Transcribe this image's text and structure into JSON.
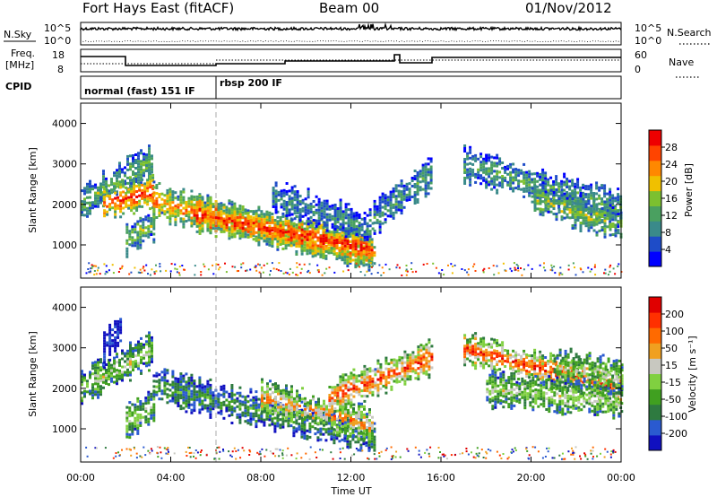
{
  "header": {
    "station": "Fort Hays East (fitACF)",
    "beam": "Beam 00",
    "date": "01/Nov/2012"
  },
  "top_panel": {
    "nsky_label": "N.Sky",
    "nsearch_label": "N.Search",
    "left_ticks": [
      "10^5",
      "10^0"
    ],
    "right_ticks": [
      "10^5",
      "10^0"
    ]
  },
  "freq_panel": {
    "freq_label_line1": "Freq.",
    "freq_label_line2": "[MHz]",
    "nave_label": "Nave",
    "left_ticks": [
      "18",
      "8"
    ],
    "right_ticks": [
      "60",
      "0"
    ]
  },
  "cpid_panel": {
    "label": "CPID",
    "modes": [
      {
        "name": "normal (fast) 151 IF",
        "start_hour": 0
      },
      {
        "name": "rbsp 200 IF",
        "start_hour": 6
      }
    ]
  },
  "x_axis": {
    "title": "Time UT",
    "ticks": [
      "00:00",
      "04:00",
      "08:00",
      "12:00",
      "16:00",
      "20:00",
      "00:00"
    ]
  },
  "colors": {
    "power_scale": [
      "#0000ff",
      "#1e4cc8",
      "#3a8a8a",
      "#4aa060",
      "#7cc030",
      "#f0c000",
      "#ff8800",
      "#ff4400",
      "#ee0000"
    ],
    "velocity_scale": [
      "#1010c0",
      "#2a5ad0",
      "#2e7a40",
      "#40a020",
      "#80d040",
      "#c8c8c0",
      "#f0a020",
      "#ff6a00",
      "#ff3000",
      "#e00000"
    ]
  },
  "chart_data": [
    {
      "type": "heatmap",
      "name": "power",
      "ylabel": "Slant Range [km]",
      "colorbar_label": "Power [dB]",
      "colorbar_ticks": [
        "28",
        "24",
        "20",
        "16",
        "12",
        "8",
        "4"
      ],
      "xlim_hours": [
        0,
        24
      ],
      "ylim_km": [
        180,
        4500
      ],
      "y_ticks": [
        "4000",
        "3000",
        "2000",
        "1000"
      ],
      "y_tick_values": [
        4000,
        3000,
        2000,
        1000
      ],
      "echo_bands": [
        {
          "t0": 0.0,
          "t1": 3.2,
          "r0": 2050,
          "r1": 3150,
          "level": 0.45
        },
        {
          "t0": 1.0,
          "t1": 3.2,
          "r0": 2050,
          "r1": 2350,
          "level": 0.9
        },
        {
          "t0": 2.0,
          "t1": 3.2,
          "r0": 1150,
          "r1": 1550,
          "level": 0.5
        },
        {
          "t0": 3.2,
          "t1": 13.0,
          "r0": 2100,
          "r1": 800,
          "level": 0.75
        },
        {
          "t0": 5.0,
          "t1": 13.0,
          "r0": 1800,
          "r1": 900,
          "level": 0.95
        },
        {
          "t0": 8.5,
          "t1": 13.0,
          "r0": 2200,
          "r1": 1400,
          "level": 0.3
        },
        {
          "t0": 13.0,
          "t1": 15.6,
          "r0": 1700,
          "r1": 2800,
          "level": 0.35
        },
        {
          "t0": 17.0,
          "t1": 24.0,
          "r0": 3000,
          "r1": 1900,
          "level": 0.4
        },
        {
          "t0": 20.0,
          "t1": 24.0,
          "r0": 2200,
          "r1": 1500,
          "level": 0.5
        }
      ]
    },
    {
      "type": "heatmap",
      "name": "velocity",
      "ylabel": "Slant Range [km]",
      "colorbar_label": "Velocity [m s⁻¹]",
      "colorbar_ticks": [
        "200",
        "100",
        "50",
        "15",
        "-15",
        "-50",
        "-100",
        "-200"
      ],
      "xlim_hours": [
        0,
        24
      ],
      "ylim_km": [
        180,
        4500
      ],
      "y_ticks": [
        "4000",
        "3000",
        "2000",
        "1000"
      ],
      "y_tick_values": [
        4000,
        3000,
        2000,
        1000
      ],
      "echo_bands": [
        {
          "t0": 0.0,
          "t1": 3.2,
          "r0": 2050,
          "r1": 3000,
          "level": 0.5
        },
        {
          "t0": 1.0,
          "t1": 1.8,
          "r0": 3000,
          "r1": 3500,
          "level": 0.05
        },
        {
          "t0": 2.0,
          "t1": 3.2,
          "r0": 1200,
          "r1": 1600,
          "level": 0.5
        },
        {
          "t0": 3.2,
          "t1": 13.0,
          "r0": 2100,
          "r1": 800,
          "level": 0.3
        },
        {
          "t0": 8.0,
          "t1": 13.0,
          "r0": 1800,
          "r1": 1100,
          "level": 0.7
        },
        {
          "t0": 11.0,
          "t1": 15.6,
          "r0": 1800,
          "r1": 2800,
          "level": 0.85
        },
        {
          "t0": 17.0,
          "t1": 24.0,
          "r0": 3000,
          "r1": 2000,
          "level": 0.85
        },
        {
          "t0": 18.0,
          "t1": 24.0,
          "r0": 2000,
          "r1": 1700,
          "level": 0.5
        },
        {
          "t0": 21.0,
          "t1": 24.0,
          "r0": 2600,
          "r1": 2300,
          "level": 0.5
        }
      ]
    }
  ]
}
